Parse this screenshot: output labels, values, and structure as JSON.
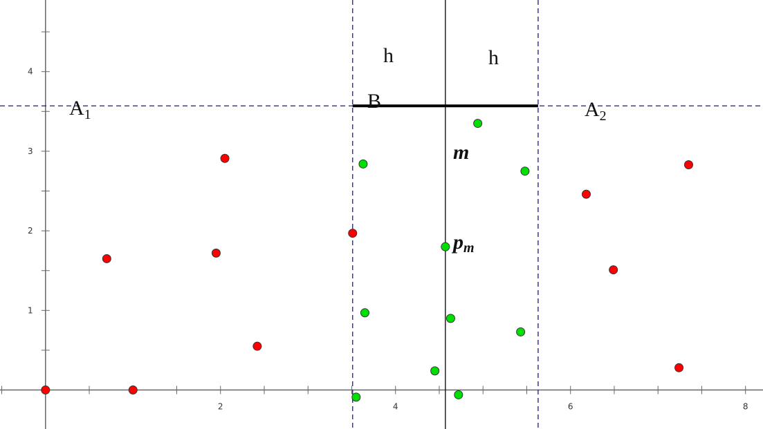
{
  "chart_data": {
    "type": "scatter",
    "xlim": [
      -0.52,
      8.2
    ],
    "ylim": [
      -0.49,
      4.9
    ],
    "x_ticks": [
      2,
      4,
      6,
      8
    ],
    "y_ticks": [
      1,
      2,
      3,
      4
    ],
    "minor_step": 0.5,
    "grid": false,
    "colors": {
      "red": "#ff0000",
      "green": "#00e000",
      "dashed": "#1a1a8c",
      "axis": "#666666"
    },
    "red_points": [
      [
        0,
        0
      ],
      [
        1.0,
        0
      ],
      [
        0.7,
        1.65
      ],
      [
        1.95,
        1.72
      ],
      [
        2.05,
        2.91
      ],
      [
        2.42,
        0.55
      ],
      [
        3.51,
        1.97
      ],
      [
        6.18,
        2.46
      ],
      [
        6.49,
        1.51
      ],
      [
        7.35,
        2.83
      ],
      [
        7.24,
        0.28
      ]
    ],
    "green_points": [
      [
        3.63,
        2.84
      ],
      [
        3.65,
        0.97
      ],
      [
        3.55,
        -0.09
      ],
      [
        4.45,
        0.24
      ],
      [
        4.57,
        1.8
      ],
      [
        4.63,
        0.9
      ],
      [
        4.72,
        -0.06
      ],
      [
        4.94,
        3.35
      ],
      [
        5.48,
        2.75
      ],
      [
        5.43,
        0.73
      ]
    ],
    "median_line_x": 4.57,
    "strip_left_x": 3.51,
    "strip_right_x": 5.63,
    "h_line_y": 3.57,
    "labels": {
      "A1": "A",
      "A1_sub": "1",
      "A2": "A",
      "A2_sub": "2",
      "B": "B",
      "h_left": "h",
      "h_right": "h",
      "m": "m",
      "pm": "p",
      "pm_sub": "m"
    }
  }
}
